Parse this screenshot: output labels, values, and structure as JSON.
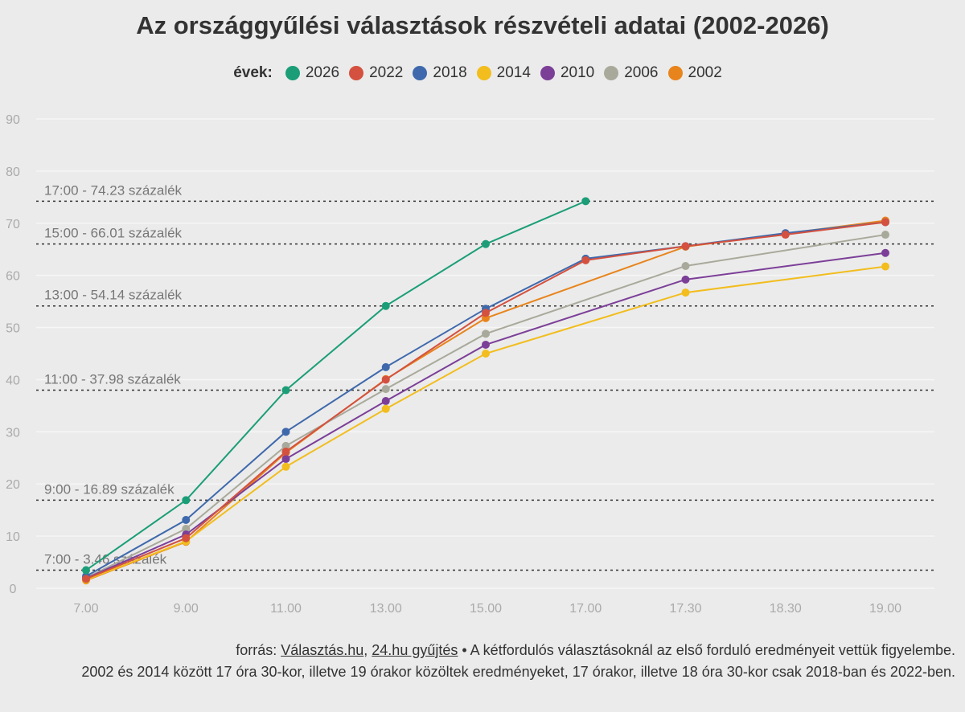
{
  "chart_data": {
    "type": "line",
    "title": "Az országgyűlési választások részvételi adatai (2002-2026)",
    "legend_title": "évek:",
    "legend_position": "top",
    "categories": [
      "7.00",
      "9.00",
      "11.00",
      "13.00",
      "15.00",
      "17.00",
      "17.30",
      "18.30",
      "19.00"
    ],
    "ylim": [
      0,
      90
    ],
    "yticks": [
      "0",
      "10",
      "20",
      "30",
      "40",
      "50",
      "60",
      "70",
      "80",
      "90"
    ],
    "grid": true,
    "series": [
      {
        "name": "2026",
        "color": "#1b9e77",
        "values": [
          3.46,
          16.89,
          37.98,
          54.14,
          66.01,
          74.23,
          null,
          null,
          null
        ]
      },
      {
        "name": "2022",
        "color": "#d4513f",
        "values": [
          1.8,
          9.6,
          26.2,
          40.0,
          52.8,
          62.9,
          65.6,
          67.8,
          70.2
        ]
      },
      {
        "name": "2018",
        "color": "#3f69ac",
        "values": [
          2.3,
          13.1,
          30.0,
          42.4,
          53.6,
          63.2,
          65.6,
          68.1,
          70.2
        ]
      },
      {
        "name": "2014",
        "color": "#f2bd1d",
        "values": [
          1.6,
          9.0,
          23.3,
          34.4,
          45.0,
          null,
          56.7,
          null,
          61.7
        ]
      },
      {
        "name": "2010",
        "color": "#7c3f98",
        "values": [
          1.9,
          10.3,
          24.8,
          35.9,
          46.7,
          null,
          59.2,
          null,
          64.3
        ]
      },
      {
        "name": "2006",
        "color": "#a9a99b",
        "values": [
          2.0,
          11.4,
          27.3,
          38.2,
          48.8,
          null,
          61.8,
          null,
          67.8
        ]
      },
      {
        "name": "2002",
        "color": "#e8841c",
        "values": [
          1.5,
          8.9,
          26.0,
          40.1,
          51.8,
          null,
          65.5,
          null,
          70.5
        ]
      }
    ],
    "reference_lines": [
      {
        "value": 3.46,
        "label": "7:00 - 3.46 százalék"
      },
      {
        "value": 16.89,
        "label": "9:00 - 16.89 százalék"
      },
      {
        "value": 37.98,
        "label": "11:00 - 37.98 százalék"
      },
      {
        "value": 54.14,
        "label": "13:00 - 54.14 százalék"
      },
      {
        "value": 66.01,
        "label": "15:00 - 66.01 százalék"
      },
      {
        "value": 74.23,
        "label": "17:00 - 74.23 százalék"
      }
    ]
  },
  "footer": {
    "prefix": "forrás: ",
    "link1": "Választás.hu",
    "sep": ", ",
    "link2": "24.hu gyűjtés",
    "line1_rest": " • A kétfordulós választásoknál az első forduló eredményeit vettük figyelembe.",
    "line2": "2002 és 2014 között 17 óra 30-kor, illetve 19 órakor közöltek eredményeket, 17 órakor, illetve 18 óra 30-kor csak 2018-ban és 2022-ben."
  }
}
